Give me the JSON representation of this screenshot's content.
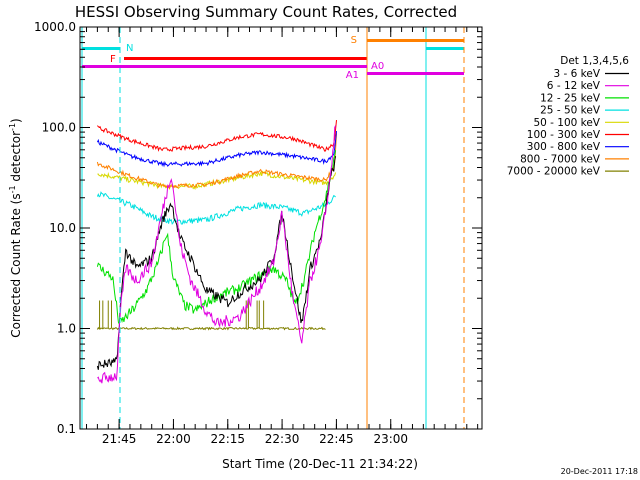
{
  "chart_data": {
    "type": "line",
    "title": "HESSI Observing Summary Count Rates, Corrected",
    "xlabel": "Start Time (20-Dec-11 21:34:22)",
    "ylabel_main": "Corrected Count Rate (s",
    "ylabel_sup1": "-1",
    "ylabel_mid": " detector",
    "ylabel_sup2": "-1",
    "ylabel_end": ")",
    "y_scale": "log",
    "ylim": [
      0.1,
      1000
    ],
    "xlim_minutes": [
      21.57,
      23.42
    ],
    "x_ticks": [
      {
        "label": "21:45",
        "minute": 21.75
      },
      {
        "label": "22:00",
        "minute": 22.0
      },
      {
        "label": "22:15",
        "minute": 22.25
      },
      {
        "label": "22:30",
        "minute": 22.5
      },
      {
        "label": "22:45",
        "minute": 22.75
      },
      {
        "label": "23:00",
        "minute": 23.0
      }
    ],
    "y_ticks": [
      "0.1",
      "1.0",
      "10.0",
      "100.0",
      "1000.0"
    ],
    "legend_title": "Det 1,3,4,5,6",
    "legend_placement": "right",
    "series": [
      {
        "name": "3 - 6 keV",
        "color": "#000000"
      },
      {
        "name": "6 - 12 keV",
        "color": "#e000e0"
      },
      {
        "name": "12 - 25 keV",
        "color": "#00e000"
      },
      {
        "name": "25 - 50 keV",
        "color": "#00e0e0"
      },
      {
        "name": "50 - 100 keV",
        "color": "#d8d800"
      },
      {
        "name": "100 - 300 keV",
        "color": "#ff0000"
      },
      {
        "name": "300 - 800 keV",
        "color": "#0000ff"
      },
      {
        "name": "800 - 7000 keV",
        "color": "#ff8000"
      },
      {
        "name": "7000 - 20000 keV",
        "color": "#808000"
      }
    ],
    "flags": [
      {
        "label": "N",
        "color": "#00e0e0"
      },
      {
        "label": "F",
        "color": "#ff0000"
      },
      {
        "label": "S",
        "color": "#ff8000"
      },
      {
        "label": "A0",
        "color": "#e000e0"
      },
      {
        "label": "A1",
        "color": "#e000e0"
      }
    ],
    "timestamp": "20-Dec-2011 17:18"
  }
}
